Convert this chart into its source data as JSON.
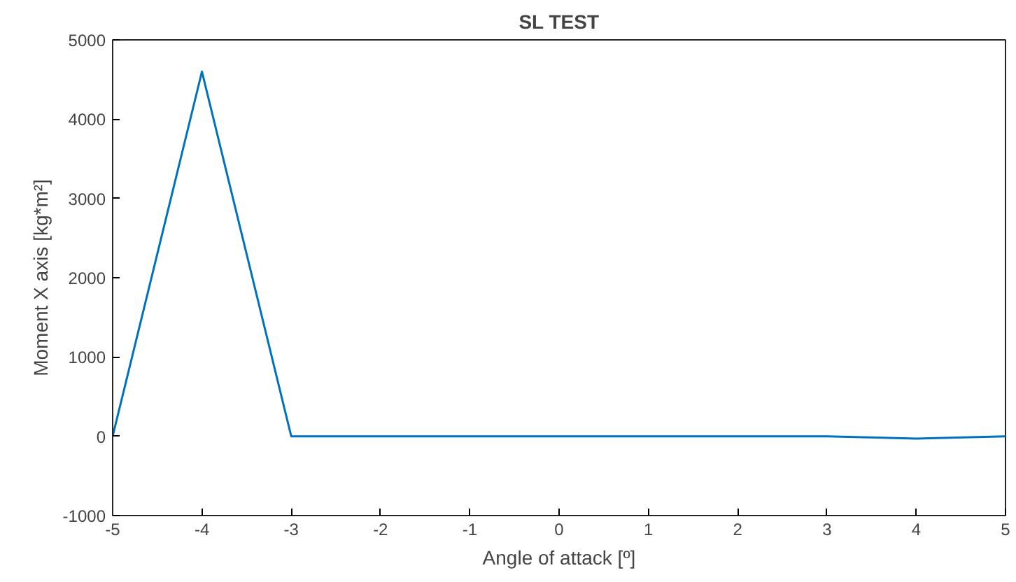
{
  "chart_data": {
    "type": "line",
    "title": "SL TEST",
    "xlabel": "Angle of attack [º]",
    "ylabel": "Moment X axis [kg*m²]",
    "x": [
      -5,
      -4,
      -3,
      -2,
      -1,
      0,
      1,
      2,
      3,
      4,
      5
    ],
    "series": [
      {
        "color": "#0072bd",
        "values": [
          0,
          4600,
          0,
          0,
          0,
          0,
          0,
          0,
          0,
          -30,
          0
        ]
      }
    ],
    "xlim": [
      -5,
      5
    ],
    "ylim": [
      -1000,
      5000
    ],
    "xticks": [
      -5,
      -4,
      -3,
      -2,
      -1,
      0,
      1,
      2,
      3,
      4,
      5
    ],
    "yticks": [
      -1000,
      0,
      1000,
      2000,
      3000,
      4000,
      5000
    ],
    "grid": false
  }
}
